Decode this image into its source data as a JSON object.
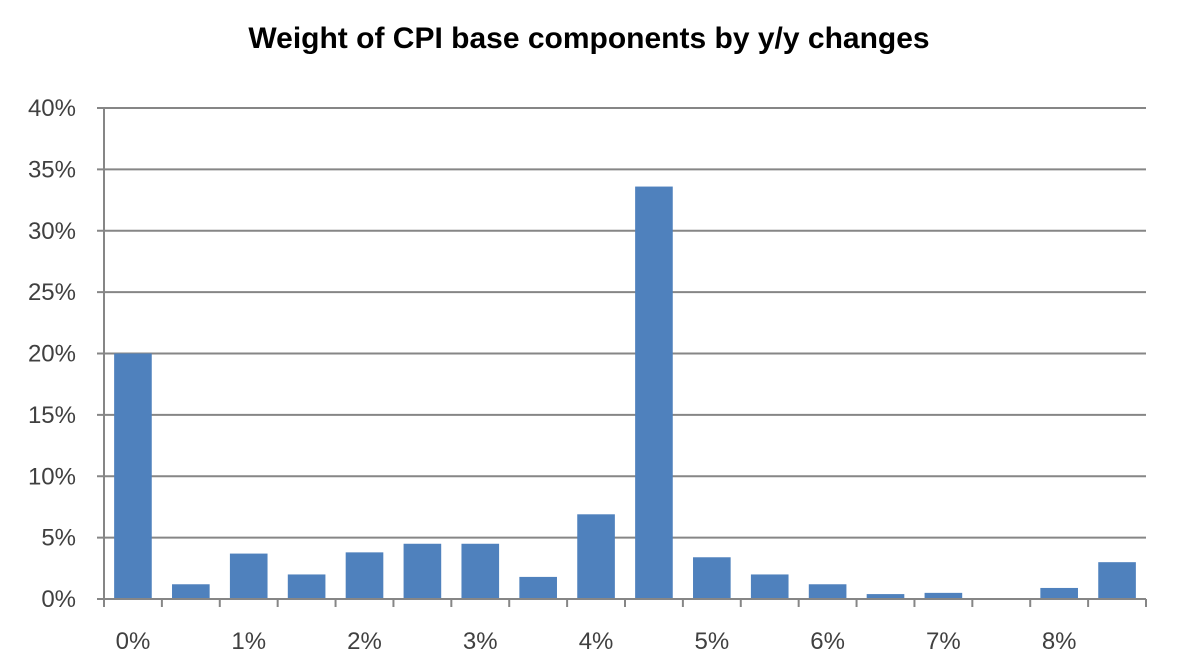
{
  "chart_data": {
    "type": "bar",
    "title": "Weight of CPI base components by y/y changes",
    "xlabel": "",
    "ylabel": "",
    "categories": [
      "0%",
      "0.5%",
      "1%",
      "1.5%",
      "2%",
      "2.5%",
      "3%",
      "3.5%",
      "4%",
      "4.5%",
      "5%",
      "5.5%",
      "6%",
      "6.5%",
      "7%",
      "7.5%",
      "8%",
      "8.5%"
    ],
    "x_tick_labels": [
      "0%",
      "1%",
      "2%",
      "3%",
      "4%",
      "5%",
      "6%",
      "7%",
      "8%"
    ],
    "values": [
      20.0,
      1.2,
      3.7,
      2.0,
      3.8,
      4.5,
      4.5,
      1.8,
      6.9,
      33.6,
      3.4,
      2.0,
      1.2,
      0.4,
      0.5,
      0.0,
      0.9,
      3.0
    ],
    "ylim": [
      0,
      40
    ],
    "y_ticks": [
      0,
      5,
      10,
      15,
      20,
      25,
      30,
      35,
      40
    ],
    "y_tick_labels": [
      "0%",
      "5%",
      "10%",
      "15%",
      "20%",
      "25%",
      "30%",
      "35%",
      "40%"
    ],
    "grid": true,
    "legend": "none",
    "bar_color": "#4F81BD",
    "grid_color": "#868686"
  }
}
